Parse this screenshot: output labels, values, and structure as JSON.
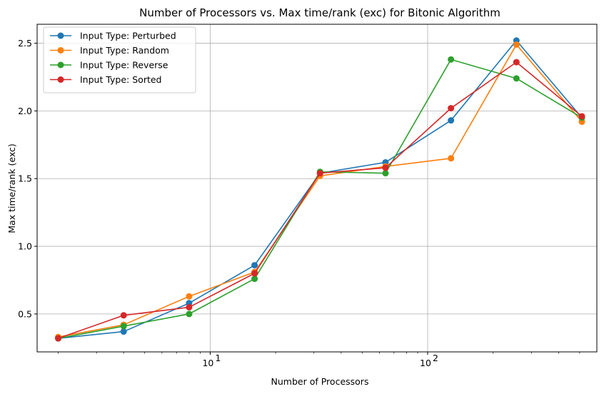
{
  "chart_data": {
    "type": "line",
    "title": "Number of Processors vs. Max time/rank (exc) for Bitonic Algorithm",
    "xlabel": "Number of Processors",
    "ylabel": "Max time/rank (exc)",
    "x_scale": "log",
    "xlim": [
      1.6,
      600
    ],
    "ylim": [
      0.22,
      2.64
    ],
    "x_ticks": [
      {
        "value": 10,
        "label": "10",
        "exp": "1"
      },
      {
        "value": 100,
        "label": "10",
        "exp": "2"
      }
    ],
    "y_ticks": [
      0.5,
      1.0,
      1.5,
      2.0,
      2.5
    ],
    "y_tick_labels": [
      "0.5",
      "1.0",
      "1.5",
      "2.0",
      "2.5"
    ],
    "grid": true,
    "legend_position": "top-left",
    "x": [
      2,
      4,
      8,
      16,
      32,
      64,
      128,
      256,
      512
    ],
    "series": [
      {
        "name": "Input Type: Perturbed",
        "color": "#1f77b4",
        "values": [
          0.32,
          0.37,
          0.58,
          0.86,
          1.54,
          1.62,
          1.93,
          2.52,
          1.95
        ]
      },
      {
        "name": "Input Type: Random",
        "color": "#ff7f0e",
        "values": [
          0.33,
          0.42,
          0.63,
          0.81,
          1.52,
          1.59,
          1.65,
          2.49,
          1.92
        ]
      },
      {
        "name": "Input Type: Reverse",
        "color": "#2ca02c",
        "values": [
          0.32,
          0.41,
          0.5,
          0.76,
          1.55,
          1.54,
          2.38,
          2.24,
          1.95
        ]
      },
      {
        "name": "Input Type: Sorted",
        "color": "#d62728",
        "values": [
          0.32,
          0.49,
          0.55,
          0.8,
          1.54,
          1.58,
          2.02,
          2.36,
          1.96
        ]
      }
    ]
  }
}
